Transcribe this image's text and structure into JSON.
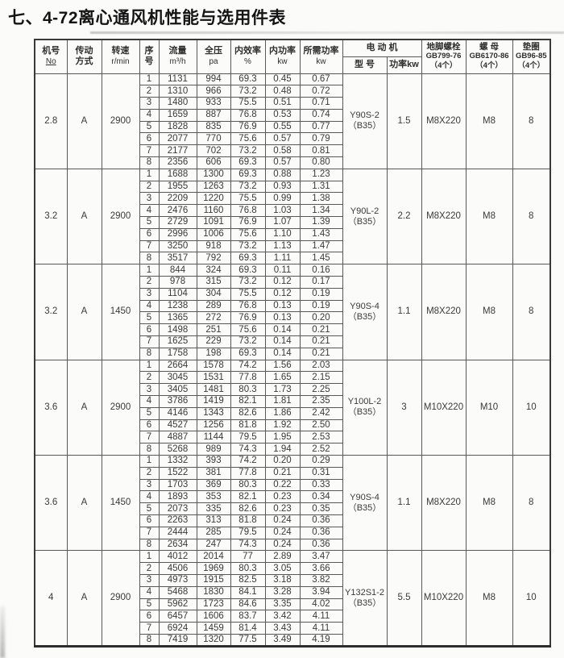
{
  "title": "七、4-72离心通风机性能与选用件表",
  "table": {
    "headers": {
      "machine_no": [
        "机号",
        "No"
      ],
      "drive": [
        "传动",
        "方式"
      ],
      "speed": [
        "转速",
        "r/min"
      ],
      "seq": [
        "序",
        "号"
      ],
      "flow": [
        "流量",
        "m³/h"
      ],
      "pressure": [
        "全压",
        "pa"
      ],
      "efficiency": [
        "内效率",
        "%"
      ],
      "inner_power": [
        "内功率",
        "kw"
      ],
      "required_power": [
        "所需功率",
        "kw"
      ],
      "motor": "电 动 机",
      "motor_model": "型 号",
      "motor_power": "功率kw",
      "anchor_bolt": [
        "地脚螺栓",
        "GB799-76",
        "（4个）"
      ],
      "nut": [
        "螺 母",
        "GB6170-86",
        "（4个）"
      ],
      "washer": [
        "垫圈",
        "GB96-85",
        "（4个）"
      ]
    },
    "groups": [
      {
        "machine_no": "2.8",
        "drive": "A",
        "speed": "2900",
        "motor_model": "Y90S-2",
        "motor_frame": "（B35）",
        "motor_power": "1.5",
        "anchor_bolt": "M8X220",
        "nut": "M8",
        "washer": "8",
        "rows": [
          [
            "1",
            "1131",
            "994",
            "69.3",
            "0.45",
            "0.67"
          ],
          [
            "2",
            "1310",
            "966",
            "73.2",
            "0.48",
            "0.72"
          ],
          [
            "3",
            "1480",
            "933",
            "75.5",
            "0.51",
            "0.71"
          ],
          [
            "4",
            "1659",
            "887",
            "76.8",
            "0.53",
            "0.74"
          ],
          [
            "5",
            "1828",
            "835",
            "76.9",
            "0.55",
            "0.77"
          ],
          [
            "6",
            "2077",
            "770",
            "75.6",
            "0.57",
            "0.79"
          ],
          [
            "7",
            "2177",
            "702",
            "73.2",
            "0.58",
            "0.81"
          ],
          [
            "8",
            "2356",
            "606",
            "69.3",
            "0.57",
            "0.80"
          ]
        ]
      },
      {
        "machine_no": "3.2",
        "drive": "A",
        "speed": "2900",
        "motor_model": "Y90L-2",
        "motor_frame": "（B35）",
        "motor_power": "2.2",
        "anchor_bolt": "M8X220",
        "nut": "M8",
        "washer": "8",
        "rows": [
          [
            "1",
            "1688",
            "1300",
            "69.3",
            "0.88",
            "1.23"
          ],
          [
            "2",
            "1955",
            "1263",
            "73.2",
            "0.93",
            "1.31"
          ],
          [
            "3",
            "2209",
            "1220",
            "75.5",
            "0.99",
            "1.38"
          ],
          [
            "4",
            "2476",
            "1160",
            "76.8",
            "1.03",
            "1.34"
          ],
          [
            "5",
            "2729",
            "1091",
            "76.9",
            "1.07",
            "1.39"
          ],
          [
            "6",
            "2996",
            "1006",
            "75.6",
            "1.10",
            "1.43"
          ],
          [
            "7",
            "3250",
            "918",
            "73.2",
            "1.13",
            "1.47"
          ],
          [
            "8",
            "3517",
            "792",
            "69.3",
            "1.11",
            "1.45"
          ]
        ]
      },
      {
        "machine_no": "3.2",
        "drive": "A",
        "speed": "1450",
        "motor_model": "Y90S-4",
        "motor_frame": "（B35）",
        "motor_power": "1.1",
        "anchor_bolt": "M8X220",
        "nut": "M8",
        "washer": "8",
        "rows": [
          [
            "1",
            "844",
            "324",
            "69.3",
            "0.11",
            "0.16"
          ],
          [
            "2",
            "978",
            "315",
            "73.2",
            "0.12",
            "0.17"
          ],
          [
            "3",
            "1104",
            "304",
            "75.5",
            "0.12",
            "0.19"
          ],
          [
            "4",
            "1238",
            "289",
            "76.8",
            "0.13",
            "0.19"
          ],
          [
            "5",
            "1365",
            "272",
            "76.9",
            "0.13",
            "0.20"
          ],
          [
            "6",
            "1498",
            "251",
            "75.6",
            "0.14",
            "0.21"
          ],
          [
            "7",
            "1625",
            "229",
            "73.2",
            "0.14",
            "0.21"
          ],
          [
            "8",
            "1758",
            "198",
            "69.3",
            "0.14",
            "0.21"
          ]
        ]
      },
      {
        "machine_no": "3.6",
        "drive": "A",
        "speed": "2900",
        "motor_model": "Y100L-2",
        "motor_frame": "（B35）",
        "motor_power": "3",
        "anchor_bolt": "M10X220",
        "nut": "M10",
        "washer": "10",
        "rows": [
          [
            "1",
            "2664",
            "1578",
            "74.2",
            "1.56",
            "2.03"
          ],
          [
            "2",
            "3045",
            "1531",
            "77.8",
            "1.65",
            "2.15"
          ],
          [
            "3",
            "3405",
            "1481",
            "80.3",
            "1.73",
            "2.25"
          ],
          [
            "4",
            "3786",
            "1419",
            "82.1",
            "1.81",
            "2.35"
          ],
          [
            "5",
            "4146",
            "1343",
            "82.6",
            "1.86",
            "2.42"
          ],
          [
            "6",
            "4527",
            "1256",
            "81.8",
            "1.92",
            "2.50"
          ],
          [
            "7",
            "4887",
            "1144",
            "79.5",
            "1.95",
            "2.53"
          ],
          [
            "8",
            "5268",
            "989",
            "74.3",
            "1.94",
            "2.52"
          ]
        ]
      },
      {
        "machine_no": "3.6",
        "drive": "A",
        "speed": "1450",
        "motor_model": "Y90S-4",
        "motor_frame": "（B35）",
        "motor_power": "1.1",
        "anchor_bolt": "M8X220",
        "nut": "M8",
        "washer": "8",
        "rows": [
          [
            "1",
            "1332",
            "393",
            "74.2",
            "0.20",
            "0.29"
          ],
          [
            "2",
            "1522",
            "381",
            "77.8",
            "0.21",
            "0.31"
          ],
          [
            "3",
            "1703",
            "369",
            "80.3",
            "0.22",
            "0.33"
          ],
          [
            "4",
            "1893",
            "353",
            "82.1",
            "0.23",
            "0.34"
          ],
          [
            "5",
            "2073",
            "335",
            "82.6",
            "0.23",
            "0.35"
          ],
          [
            "6",
            "2263",
            "313",
            "81.8",
            "0.24",
            "0.36"
          ],
          [
            "7",
            "2444",
            "285",
            "79.5",
            "0.24",
            "0.36"
          ],
          [
            "8",
            "2634",
            "247",
            "74.3",
            "0.24",
            "0.36"
          ]
        ]
      },
      {
        "machine_no": "4",
        "drive": "A",
        "speed": "2900",
        "motor_model": "Y132S1-2",
        "motor_frame": "（B35）",
        "motor_power": "5.5",
        "anchor_bolt": "M10X220",
        "nut": "M8",
        "washer": "10",
        "rows": [
          [
            "1",
            "4012",
            "2014",
            "77",
            "2.89",
            "3.47"
          ],
          [
            "2",
            "4506",
            "1969",
            "80.3",
            "3.05",
            "3.66"
          ],
          [
            "3",
            "4973",
            "1915",
            "82.5",
            "3.18",
            "3.82"
          ],
          [
            "4",
            "5468",
            "1830",
            "84.1",
            "3.28",
            "3.94"
          ],
          [
            "5",
            "5962",
            "1723",
            "84.6",
            "3.35",
            "4.02"
          ],
          [
            "6",
            "6457",
            "1606",
            "83.7",
            "3.42",
            "4.11"
          ],
          [
            "7",
            "6924",
            "1459",
            "81.4",
            "3.43",
            "4.11"
          ],
          [
            "8",
            "7419",
            "1320",
            "77.5",
            "3.49",
            "4.19"
          ]
        ]
      }
    ]
  }
}
